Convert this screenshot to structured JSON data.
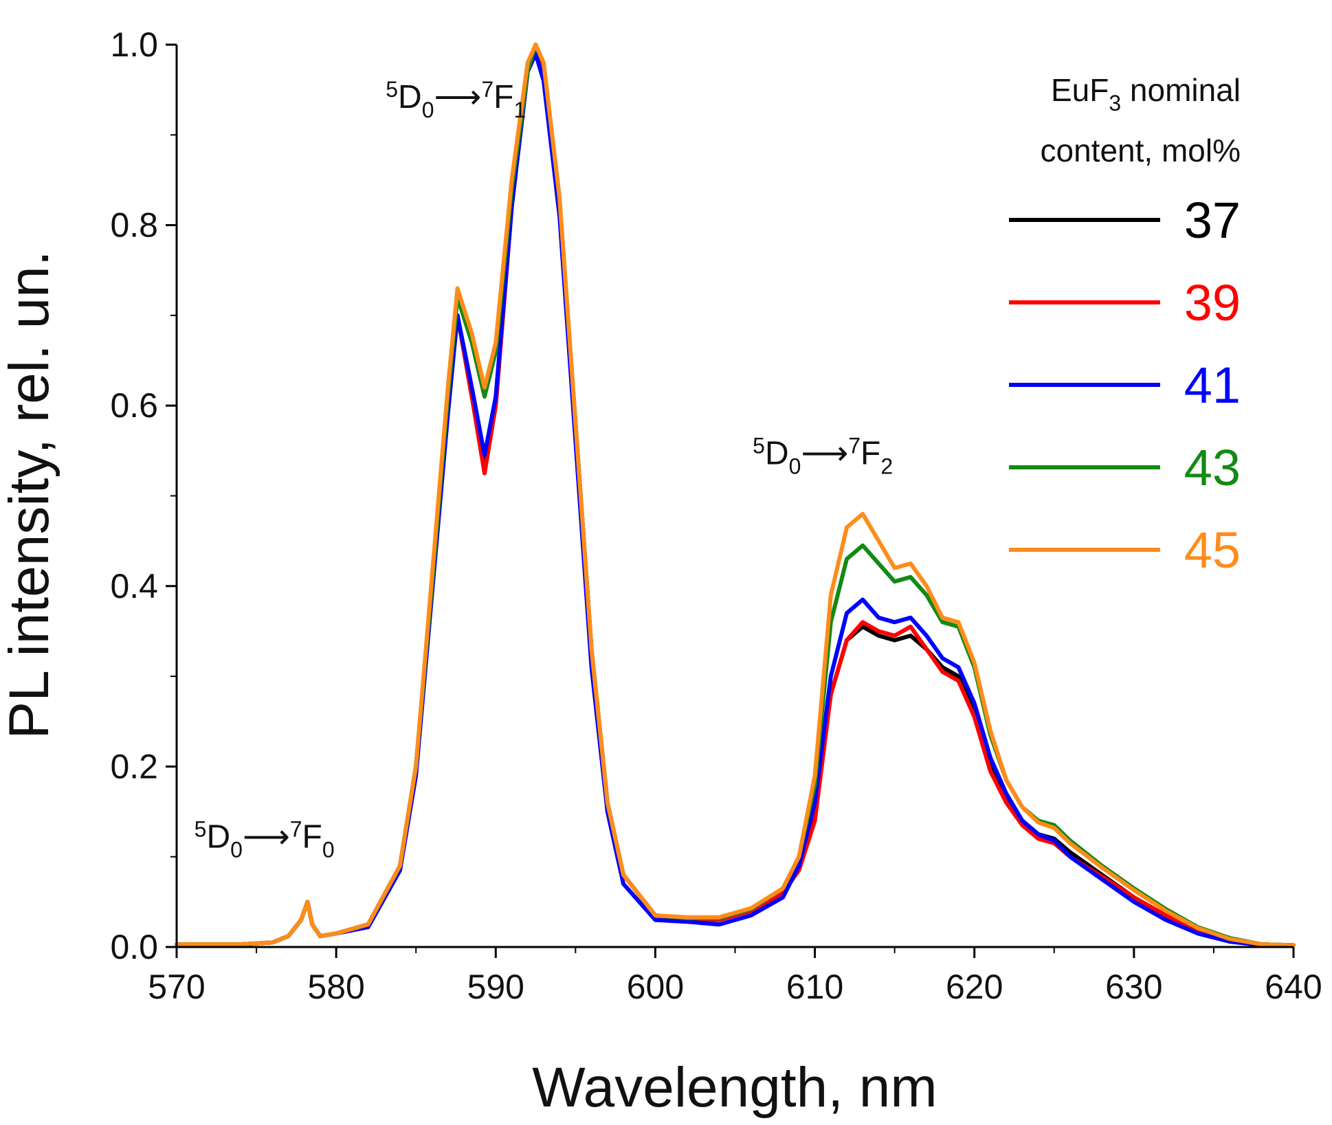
{
  "chart_data": {
    "type": "line",
    "xlabel": "Wavelength, nm",
    "ylabel": "PL intensity, rel. un.",
    "xlim": [
      570,
      640
    ],
    "ylim": [
      0,
      1.0
    ],
    "xticks": [
      570,
      580,
      590,
      600,
      610,
      620,
      630,
      640
    ],
    "xtick_labels": [
      "570",
      "580",
      "590",
      "600",
      "610",
      "620",
      "630",
      "640"
    ],
    "yticks": [
      0.0,
      0.2,
      0.4,
      0.6,
      0.8,
      1.0
    ],
    "ytick_labels": [
      "0.0",
      "0.2",
      "0.4",
      "0.6",
      "0.8",
      "1.0"
    ],
    "grid": false,
    "legend": {
      "title_line1": "EuF",
      "title_sub": "3",
      "title_line1_rest": " nominal",
      "title_line2": "content, mol%",
      "placement": "top-right"
    },
    "annotations": [
      {
        "id": "f0",
        "x": 575.5,
        "y": 0.11,
        "upper_left": "5",
        "main1": "D",
        "sub1": "0",
        "arrow": "⟶",
        "upper_right": "7",
        "main2": "F",
        "sub2": "0"
      },
      {
        "id": "f1",
        "x": 587.5,
        "y": 0.93,
        "upper_left": "5",
        "main1": "D",
        "sub1": "0",
        "arrow": "⟶",
        "upper_right": "7",
        "main2": "F",
        "sub2": "1"
      },
      {
        "id": "f2",
        "x": 610.5,
        "y": 0.535,
        "upper_left": "5",
        "main1": "D",
        "sub1": "0",
        "arrow": "⟶",
        "upper_right": "7",
        "main2": "F",
        "sub2": "2"
      }
    ],
    "x": [
      570,
      572,
      574,
      576,
      577,
      577.8,
      578.2,
      578.5,
      579,
      580,
      582,
      584,
      585,
      586,
      587,
      587.6,
      588.5,
      589.3,
      590,
      591,
      592,
      592.5,
      593,
      594,
      595,
      596,
      597,
      598,
      600,
      602,
      604,
      606,
      608,
      609,
      610,
      611,
      612,
      613,
      614,
      615,
      616,
      617,
      618,
      619,
      620,
      621,
      622,
      623,
      624,
      625,
      626,
      628,
      630,
      632,
      634,
      636,
      638,
      640
    ],
    "series": [
      {
        "name": "37",
        "color": "#000000",
        "values": [
          0.003,
          0.003,
          0.003,
          0.005,
          0.012,
          0.03,
          0.05,
          0.025,
          0.012,
          0.015,
          0.025,
          0.09,
          0.2,
          0.4,
          0.6,
          0.7,
          0.61,
          0.53,
          0.6,
          0.82,
          0.97,
          1.0,
          0.97,
          0.82,
          0.58,
          0.33,
          0.16,
          0.08,
          0.035,
          0.03,
          0.03,
          0.04,
          0.06,
          0.09,
          0.15,
          0.28,
          0.34,
          0.355,
          0.345,
          0.34,
          0.345,
          0.33,
          0.31,
          0.3,
          0.26,
          0.2,
          0.165,
          0.14,
          0.125,
          0.12,
          0.105,
          0.08,
          0.055,
          0.035,
          0.018,
          0.008,
          0.003,
          0.002
        ]
      },
      {
        "name": "39",
        "color": "#ff0000",
        "values": [
          0.003,
          0.003,
          0.003,
          0.005,
          0.012,
          0.03,
          0.05,
          0.025,
          0.012,
          0.015,
          0.025,
          0.09,
          0.2,
          0.4,
          0.6,
          0.7,
          0.61,
          0.525,
          0.6,
          0.82,
          0.97,
          0.99,
          0.97,
          0.82,
          0.58,
          0.33,
          0.16,
          0.08,
          0.035,
          0.03,
          0.03,
          0.04,
          0.06,
          0.085,
          0.14,
          0.28,
          0.34,
          0.36,
          0.35,
          0.345,
          0.355,
          0.33,
          0.305,
          0.295,
          0.255,
          0.195,
          0.16,
          0.135,
          0.12,
          0.115,
          0.1,
          0.078,
          0.055,
          0.035,
          0.018,
          0.008,
          0.003,
          0.002
        ]
      },
      {
        "name": "41",
        "color": "#0000ff",
        "values": [
          0.003,
          0.003,
          0.003,
          0.005,
          0.012,
          0.03,
          0.05,
          0.025,
          0.012,
          0.015,
          0.022,
          0.085,
          0.19,
          0.39,
          0.59,
          0.7,
          0.62,
          0.545,
          0.61,
          0.82,
          0.97,
          0.99,
          0.96,
          0.81,
          0.56,
          0.31,
          0.15,
          0.07,
          0.03,
          0.028,
          0.025,
          0.035,
          0.055,
          0.09,
          0.16,
          0.3,
          0.37,
          0.385,
          0.365,
          0.36,
          0.365,
          0.345,
          0.32,
          0.31,
          0.27,
          0.21,
          0.17,
          0.14,
          0.125,
          0.118,
          0.1,
          0.075,
          0.05,
          0.03,
          0.015,
          0.006,
          0.002,
          0.002
        ]
      },
      {
        "name": "43",
        "color": "#138a13",
        "values": [
          0.003,
          0.003,
          0.003,
          0.005,
          0.012,
          0.03,
          0.05,
          0.025,
          0.012,
          0.015,
          0.025,
          0.09,
          0.2,
          0.4,
          0.61,
          0.72,
          0.67,
          0.61,
          0.66,
          0.84,
          0.97,
          1.0,
          0.98,
          0.83,
          0.58,
          0.33,
          0.16,
          0.08,
          0.035,
          0.032,
          0.032,
          0.042,
          0.065,
          0.1,
          0.18,
          0.36,
          0.43,
          0.445,
          0.425,
          0.405,
          0.41,
          0.39,
          0.36,
          0.355,
          0.31,
          0.235,
          0.185,
          0.155,
          0.14,
          0.135,
          0.118,
          0.09,
          0.065,
          0.042,
          0.022,
          0.01,
          0.003,
          0.002
        ]
      },
      {
        "name": "45",
        "color": "#ff8c1a",
        "values": [
          0.003,
          0.003,
          0.003,
          0.005,
          0.012,
          0.03,
          0.05,
          0.025,
          0.012,
          0.015,
          0.025,
          0.09,
          0.2,
          0.41,
          0.62,
          0.73,
          0.68,
          0.62,
          0.67,
          0.85,
          0.98,
          1.0,
          0.98,
          0.83,
          0.58,
          0.33,
          0.16,
          0.08,
          0.035,
          0.033,
          0.033,
          0.043,
          0.065,
          0.1,
          0.19,
          0.39,
          0.465,
          0.48,
          0.45,
          0.42,
          0.425,
          0.4,
          0.365,
          0.36,
          0.315,
          0.24,
          0.185,
          0.155,
          0.138,
          0.132,
          0.115,
          0.088,
          0.063,
          0.04,
          0.021,
          0.009,
          0.003,
          0.002
        ]
      }
    ]
  }
}
